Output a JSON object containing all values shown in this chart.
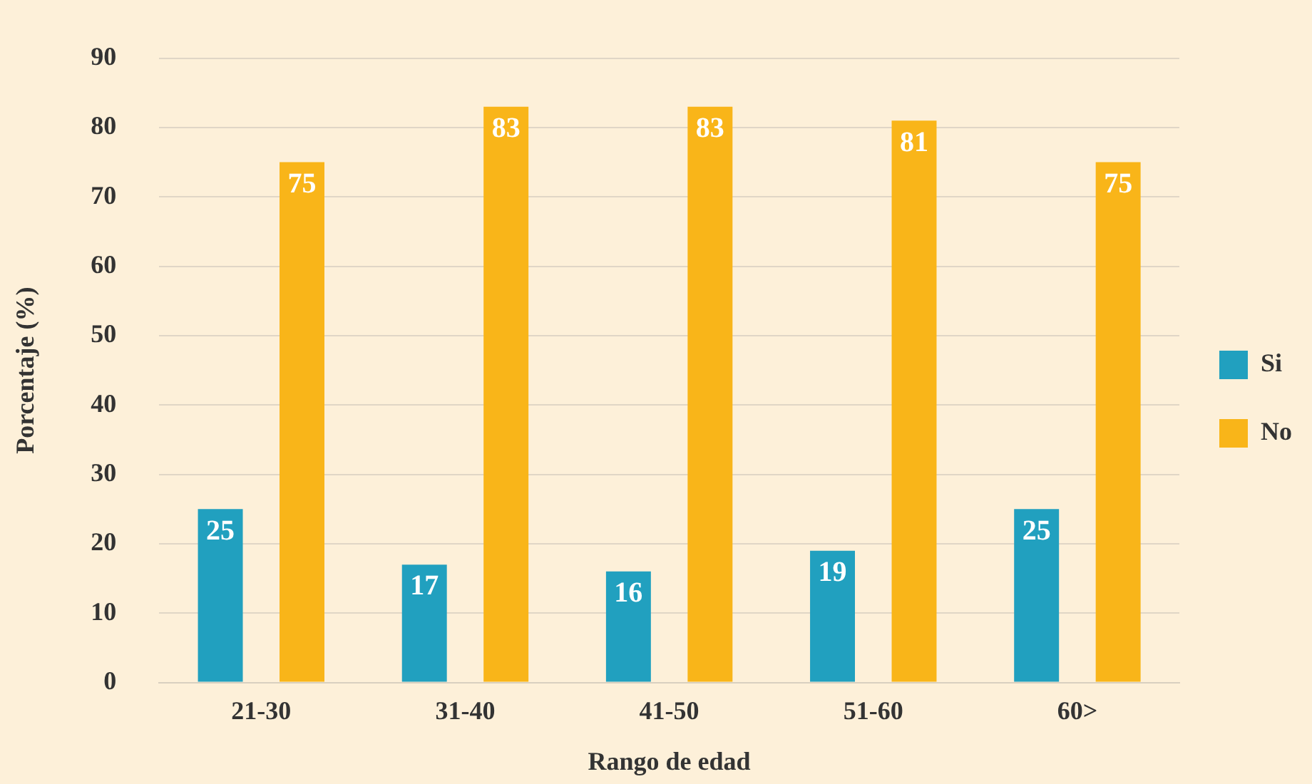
{
  "chart_data": {
    "type": "bar",
    "xlabel": "Rango de edad",
    "ylabel": "Porcentaje (%)",
    "categories": [
      "21-30",
      "31-40",
      "41-50",
      "51-60",
      "60>"
    ],
    "series": [
      {
        "name": "Si",
        "color": "#21a0bf",
        "values": [
          25,
          17,
          16,
          19,
          25
        ]
      },
      {
        "name": "No",
        "color": "#f9b519",
        "values": [
          75,
          83,
          83,
          81,
          75
        ]
      }
    ],
    "ylim": [
      0,
      90
    ],
    "yticks": [
      0,
      10,
      20,
      30,
      40,
      50,
      60,
      70,
      80,
      90
    ],
    "grid": "y",
    "legend": "right",
    "data_labels": true
  }
}
